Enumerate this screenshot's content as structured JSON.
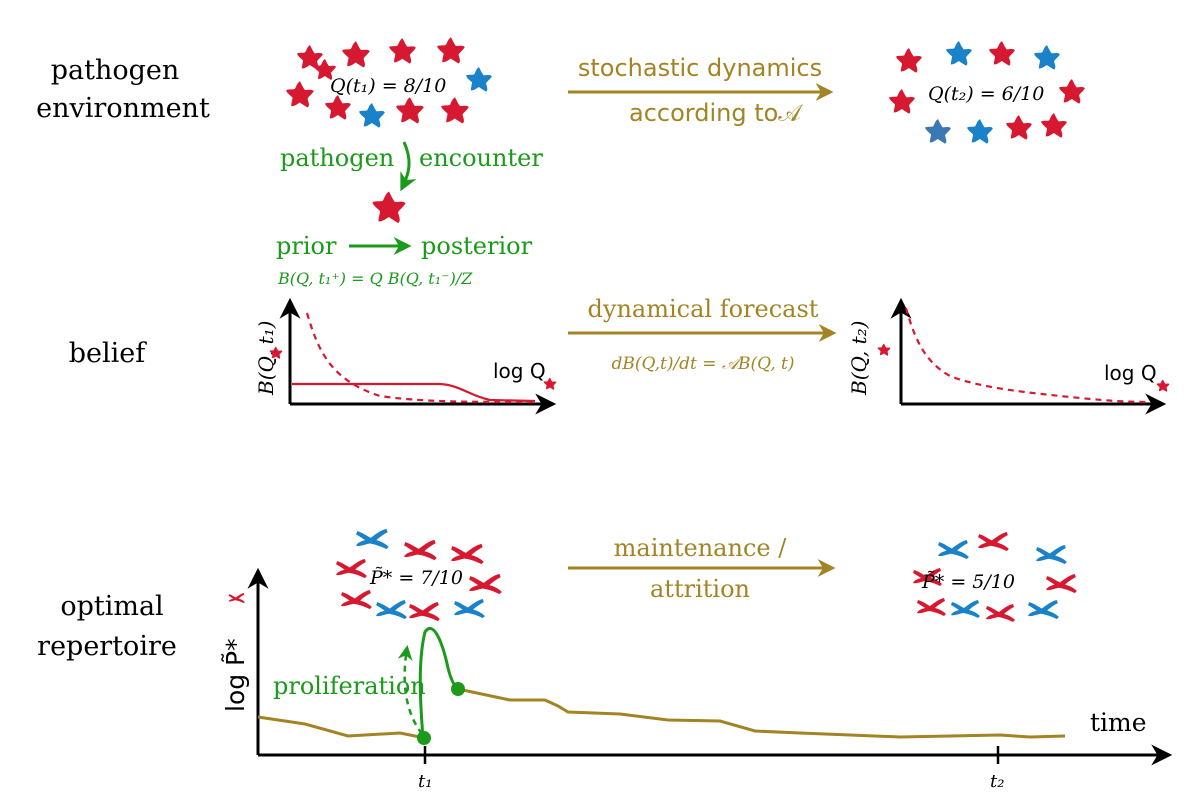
{
  "colors": {
    "red": "#d61830",
    "blue": "#1a82c8",
    "blue_dark": "#3c78b4",
    "gold": "#a38424",
    "green": "#1b9a1b",
    "black": "#000000"
  },
  "rows": {
    "environment_line1": "pathogen",
    "environment_line2": "environment",
    "belief": "belief",
    "repertoire_line1": "optimal",
    "repertoire_line2": "repertoire"
  },
  "environment": {
    "eq_left": "Q(t₁) = 8/10",
    "eq_right": "Q(t₂) = 6/10",
    "arrow_line1": "stochastic dynamics",
    "arrow_line2": "according to𝒜",
    "encounter_left": "pathogen",
    "encounter_right": "encounter",
    "prior": "prior",
    "posterior": "posterior",
    "bayes": "B(Q, t₁⁺) = Q B(Q, t₁⁻)/Z"
  },
  "belief": {
    "ylabel_left": "B(Q, t₁)",
    "ylabel_right": "B(Q, t₂)",
    "xlabel_left": "log Q",
    "xlabel_right": "log Q",
    "arrow_line1": "dynamical forecast",
    "arrow_eq": "dB(Q,t)/dt = 𝒜B(Q, t)"
  },
  "repertoire": {
    "eq_left": "P̃* = 7/10",
    "eq_right": "P̃* = 5/10",
    "arrow_line1": "maintenance /",
    "arrow_line2": "attrition",
    "ylabel": "log P̃*",
    "xlabel": "time",
    "tick_t1": "t₁",
    "tick_t2": "t₂",
    "proliferation": "proliferation"
  },
  "icons": {
    "pathogen": "star-pathogen-icon",
    "receptor": "y-receptor-icon"
  }
}
